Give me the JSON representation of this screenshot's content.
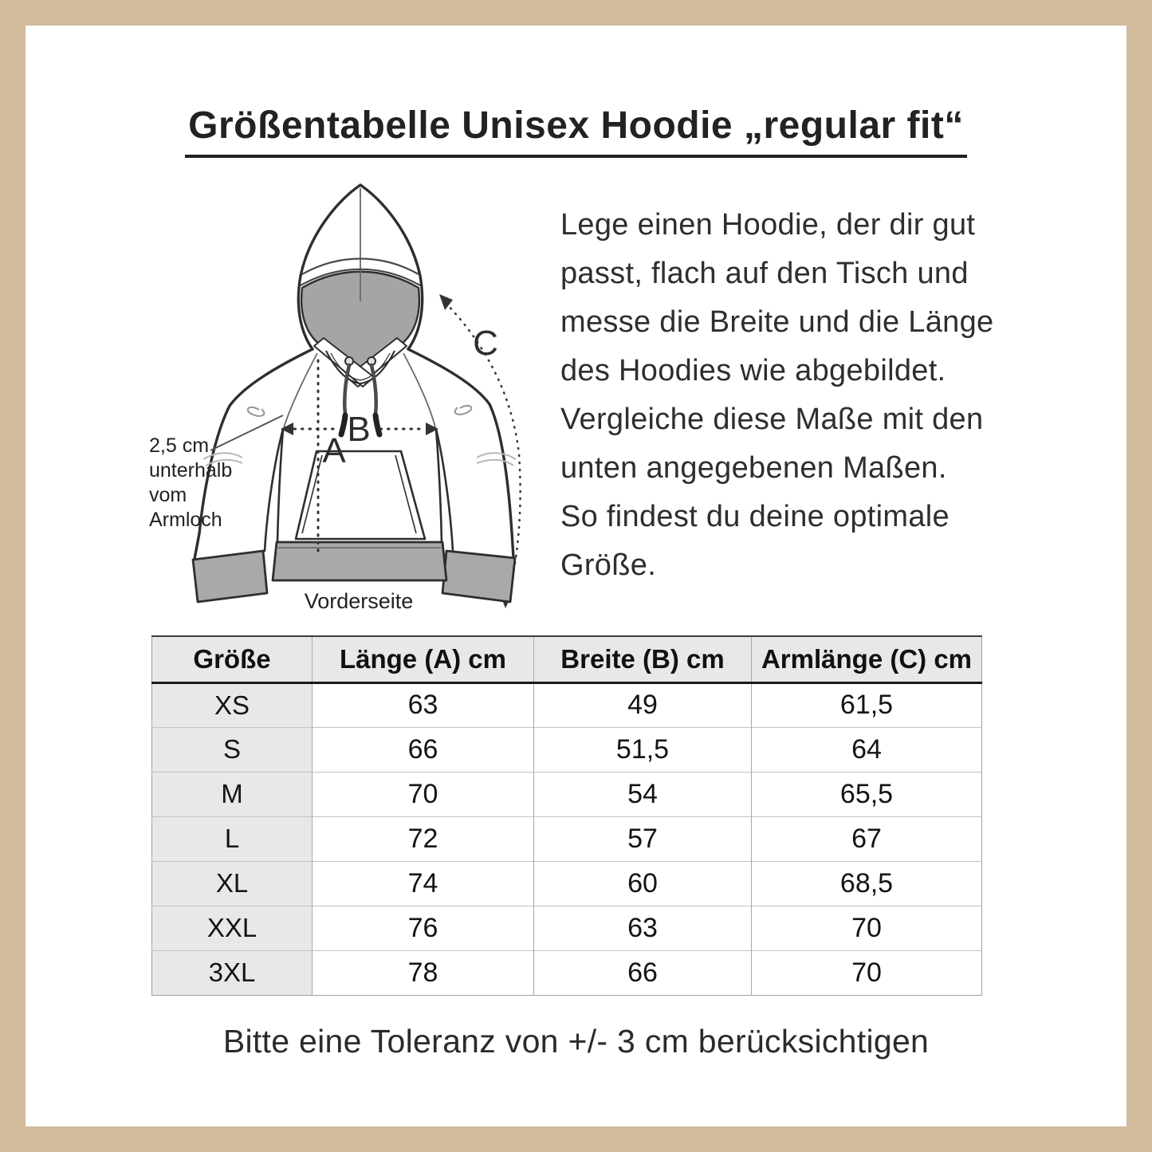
{
  "frame": {
    "color": "#d2bb9c"
  },
  "header": {
    "title": "Größentabelle Unisex Hoodie „regular fit“"
  },
  "illustration": {
    "annotation": "2,5 cm\nunterhalb\nvom\nArmloch",
    "caption": "Vorderseite",
    "labels": {
      "a": "A",
      "b": "B",
      "c": "C"
    },
    "colors": {
      "shade_gray": "#a5a5a5",
      "line": "#2e2e2e"
    }
  },
  "instructions": {
    "text": "Lege einen Hoodie, der dir gut\npasst, flach auf den Tisch und\nmesse die Breite und die Länge\ndes Hoodies wie abgebildet.\nVergleiche diese Maße mit den\nunten angegebenen Maßen.\nSo findest du deine optimale\nGröße."
  },
  "size_table": {
    "header_bg": "#e8e8e8",
    "columns": [
      "Größe",
      "Länge (A) cm",
      "Breite (B) cm",
      "Armlänge (C) cm"
    ],
    "rows": [
      [
        "XS",
        "63",
        "49",
        "61,5"
      ],
      [
        "S",
        "66",
        "51,5",
        "64"
      ],
      [
        "M",
        "70",
        "54",
        "65,5"
      ],
      [
        "L",
        "72",
        "57",
        "67"
      ],
      [
        "XL",
        "74",
        "60",
        "68,5"
      ],
      [
        "XXL",
        "76",
        "63",
        "70"
      ],
      [
        "3XL",
        "78",
        "66",
        "70"
      ]
    ]
  },
  "footer": {
    "note": "Bitte eine Toleranz von +/- 3 cm berücksichtigen"
  }
}
